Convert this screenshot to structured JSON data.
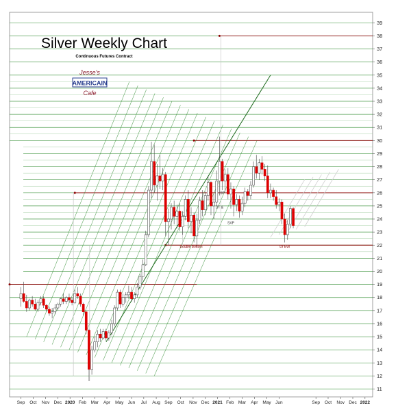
{
  "chart_data": {
    "type": "candlestick",
    "title": "Silver Weekly Chart",
    "subtitle": "Continuous Futures Contract",
    "logo_text": [
      "Jesse's",
      "AMERICAIN",
      "Cafe"
    ],
    "ylim": [
      10.4,
      39.8
    ],
    "y_ticks": [
      11,
      12,
      13,
      14,
      15,
      16,
      17,
      18,
      19,
      20,
      21,
      22,
      23,
      24,
      25,
      26,
      27,
      28,
      29,
      30,
      31,
      32,
      33,
      34,
      35,
      36,
      37,
      38,
      39
    ],
    "x_ticks": [
      {
        "label": "Sep",
        "w": 0
      },
      {
        "label": "Oct",
        "w": 4.3
      },
      {
        "label": "Nov",
        "w": 8.7
      },
      {
        "label": "Dec",
        "w": 13
      },
      {
        "label": "2020",
        "w": 17.3,
        "bold": true
      },
      {
        "label": "Feb",
        "w": 21.7
      },
      {
        "label": "Mar",
        "w": 26
      },
      {
        "label": "Apr",
        "w": 30.3
      },
      {
        "label": "May",
        "w": 34.7
      },
      {
        "label": "Jun",
        "w": 39
      },
      {
        "label": "Jul",
        "w": 43.3
      },
      {
        "label": "Aug",
        "w": 47.7
      },
      {
        "label": "Sep",
        "w": 52
      },
      {
        "label": "Oct",
        "w": 56.3
      },
      {
        "label": "Nov",
        "w": 60.7
      },
      {
        "label": "Dec",
        "w": 65
      },
      {
        "label": "2021",
        "w": 69.3,
        "bold": true
      },
      {
        "label": "Feb",
        "w": 73.7
      },
      {
        "label": "Mar",
        "w": 78
      },
      {
        "label": "Apr",
        "w": 82.3
      },
      {
        "label": "May",
        "w": 86.7
      },
      {
        "label": "Jun",
        "w": 91
      },
      {
        "label": "Sep",
        "w": 104
      },
      {
        "label": "Oct",
        "w": 108.3
      },
      {
        "label": "Nov",
        "w": 112.7
      },
      {
        "label": "Dec",
        "w": 117
      },
      {
        "label": "2022",
        "w": 121.3,
        "bold": true
      }
    ],
    "x_range": [
      -4,
      124
    ],
    "candles": [
      {
        "w": 0,
        "o": 17.9,
        "h": 18.8,
        "l": 17.3,
        "c": 18.3
      },
      {
        "w": 1,
        "o": 18.3,
        "h": 19.2,
        "l": 17.6,
        "c": 17.7
      },
      {
        "w": 2,
        "o": 17.7,
        "h": 18.2,
        "l": 16.9,
        "c": 17.2
      },
      {
        "w": 3,
        "o": 17.2,
        "h": 17.9,
        "l": 17.0,
        "c": 17.8
      },
      {
        "w": 4,
        "o": 17.8,
        "h": 18.1,
        "l": 17.3,
        "c": 17.5
      },
      {
        "w": 5,
        "o": 17.5,
        "h": 17.9,
        "l": 17.0,
        "c": 17.1
      },
      {
        "w": 6,
        "o": 17.1,
        "h": 17.8,
        "l": 16.9,
        "c": 17.6
      },
      {
        "w": 7,
        "o": 17.6,
        "h": 18.1,
        "l": 17.4,
        "c": 17.9
      },
      {
        "w": 8,
        "o": 17.9,
        "h": 18.1,
        "l": 17.2,
        "c": 17.4
      },
      {
        "w": 9,
        "o": 17.4,
        "h": 17.5,
        "l": 16.9,
        "c": 17.1
      },
      {
        "w": 10,
        "o": 17.1,
        "h": 17.3,
        "l": 16.6,
        "c": 16.8
      },
      {
        "w": 11,
        "o": 16.8,
        "h": 17.2,
        "l": 16.4,
        "c": 16.9
      },
      {
        "w": 12,
        "o": 16.9,
        "h": 17.5,
        "l": 16.7,
        "c": 17.2
      },
      {
        "w": 13,
        "o": 17.2,
        "h": 17.6,
        "l": 17.0,
        "c": 17.5
      },
      {
        "w": 14,
        "o": 17.5,
        "h": 18.0,
        "l": 17.3,
        "c": 17.9
      },
      {
        "w": 15,
        "o": 17.9,
        "h": 18.3,
        "l": 17.5,
        "c": 17.7
      },
      {
        "w": 16,
        "o": 17.7,
        "h": 18.1,
        "l": 17.5,
        "c": 18.0
      },
      {
        "w": 17,
        "o": 18.0,
        "h": 18.3,
        "l": 17.6,
        "c": 17.8
      },
      {
        "w": 18,
        "o": 17.8,
        "h": 18.0,
        "l": 17.4,
        "c": 17.6
      },
      {
        "w": 19,
        "o": 17.6,
        "h": 18.6,
        "l": 17.5,
        "c": 18.3
      },
      {
        "w": 20,
        "o": 18.3,
        "h": 18.8,
        "l": 17.9,
        "c": 18.1
      },
      {
        "w": 21,
        "o": 18.1,
        "h": 18.3,
        "l": 17.3,
        "c": 17.5
      },
      {
        "w": 22,
        "o": 17.5,
        "h": 17.6,
        "l": 16.6,
        "c": 16.9
      },
      {
        "w": 23,
        "o": 16.9,
        "h": 17.0,
        "l": 15.2,
        "c": 15.5
      },
      {
        "w": 24,
        "o": 15.5,
        "h": 15.6,
        "l": 11.6,
        "c": 12.5
      },
      {
        "w": 25,
        "o": 12.5,
        "h": 14.3,
        "l": 12.1,
        "c": 14.0
      },
      {
        "w": 26,
        "o": 14.0,
        "h": 15.0,
        "l": 13.8,
        "c": 14.6
      },
      {
        "w": 27,
        "o": 14.6,
        "h": 15.5,
        "l": 14.2,
        "c": 15.2
      },
      {
        "w": 28,
        "o": 15.2,
        "h": 15.6,
        "l": 14.6,
        "c": 14.9
      },
      {
        "w": 29,
        "o": 14.9,
        "h": 15.6,
        "l": 14.8,
        "c": 15.4
      },
      {
        "w": 30,
        "o": 15.4,
        "h": 15.6,
        "l": 14.7,
        "c": 14.9
      },
      {
        "w": 31,
        "o": 14.9,
        "h": 15.5,
        "l": 14.7,
        "c": 15.3
      },
      {
        "w": 32,
        "o": 15.3,
        "h": 16.3,
        "l": 15.1,
        "c": 16.0
      },
      {
        "w": 33,
        "o": 16.0,
        "h": 17.4,
        "l": 15.8,
        "c": 17.2
      },
      {
        "w": 34,
        "o": 17.2,
        "h": 18.6,
        "l": 17.0,
        "c": 18.4
      },
      {
        "w": 35,
        "o": 18.4,
        "h": 18.6,
        "l": 17.2,
        "c": 17.5
      },
      {
        "w": 36,
        "o": 17.5,
        "h": 18.3,
        "l": 17.3,
        "c": 18.0
      },
      {
        "w": 37,
        "o": 18.0,
        "h": 18.4,
        "l": 17.6,
        "c": 18.2
      },
      {
        "w": 38,
        "o": 18.2,
        "h": 18.9,
        "l": 17.9,
        "c": 18.4
      },
      {
        "w": 39,
        "o": 18.4,
        "h": 18.8,
        "l": 17.7,
        "c": 17.9
      },
      {
        "w": 40,
        "o": 17.9,
        "h": 18.4,
        "l": 17.6,
        "c": 18.2
      },
      {
        "w": 41,
        "o": 18.2,
        "h": 19.1,
        "l": 18.0,
        "c": 18.8
      },
      {
        "w": 42,
        "o": 18.8,
        "h": 19.8,
        "l": 18.6,
        "c": 19.6
      },
      {
        "w": 43,
        "o": 19.6,
        "h": 20.9,
        "l": 19.3,
        "c": 20.5
      },
      {
        "w": 44,
        "o": 20.5,
        "h": 23.1,
        "l": 20.4,
        "c": 22.8
      },
      {
        "w": 45,
        "o": 22.8,
        "h": 26.5,
        "l": 22.6,
        "c": 26.2
      },
      {
        "w": 46,
        "o": 26.2,
        "h": 29.9,
        "l": 25.6,
        "c": 28.4
      },
      {
        "w": 47,
        "o": 28.4,
        "h": 29.7,
        "l": 26.0,
        "c": 26.6
      },
      {
        "w": 48,
        "o": 26.6,
        "h": 28.2,
        "l": 25.4,
        "c": 27.3
      },
      {
        "w": 49,
        "o": 27.3,
        "h": 28.9,
        "l": 26.3,
        "c": 26.9
      },
      {
        "w": 50,
        "o": 26.9,
        "h": 27.9,
        "l": 26.2,
        "c": 27.4
      },
      {
        "w": 51,
        "o": 27.4,
        "h": 27.6,
        "l": 22.7,
        "c": 23.8
      },
      {
        "w": 52,
        "o": 23.8,
        "h": 24.8,
        "l": 22.0,
        "c": 24.0
      },
      {
        "w": 53,
        "o": 24.0,
        "h": 25.2,
        "l": 23.2,
        "c": 24.9
      },
      {
        "w": 54,
        "o": 24.9,
        "h": 25.4,
        "l": 23.6,
        "c": 24.2
      },
      {
        "w": 55,
        "o": 24.2,
        "h": 25.1,
        "l": 23.3,
        "c": 24.6
      },
      {
        "w": 56,
        "o": 24.6,
        "h": 25.2,
        "l": 23.1,
        "c": 23.4
      },
      {
        "w": 57,
        "o": 23.4,
        "h": 24.6,
        "l": 22.8,
        "c": 24.2
      },
      {
        "w": 58,
        "o": 24.2,
        "h": 25.8,
        "l": 23.9,
        "c": 25.5
      },
      {
        "w": 59,
        "o": 25.5,
        "h": 26.2,
        "l": 23.3,
        "c": 23.8
      },
      {
        "w": 60,
        "o": 23.8,
        "h": 24.9,
        "l": 22.9,
        "c": 24.3
      },
      {
        "w": 61,
        "o": 24.3,
        "h": 24.5,
        "l": 22.2,
        "c": 22.7
      },
      {
        "w": 62,
        "o": 22.7,
        "h": 24.4,
        "l": 21.9,
        "c": 23.9
      },
      {
        "w": 63,
        "o": 23.9,
        "h": 25.7,
        "l": 23.6,
        "c": 25.4
      },
      {
        "w": 64,
        "o": 25.4,
        "h": 26.2,
        "l": 24.2,
        "c": 24.7
      },
      {
        "w": 65,
        "o": 24.7,
        "h": 26.1,
        "l": 24.3,
        "c": 25.8
      },
      {
        "w": 66,
        "o": 25.8,
        "h": 27.3,
        "l": 25.4,
        "c": 26.8
      },
      {
        "w": 67,
        "o": 26.8,
        "h": 26.9,
        "l": 24.3,
        "c": 25.0
      },
      {
        "w": 68,
        "o": 25.0,
        "h": 25.9,
        "l": 24.0,
        "c": 25.3
      },
      {
        "w": 69,
        "o": 25.3,
        "h": 27.7,
        "l": 25.0,
        "c": 26.9
      },
      {
        "w": 70,
        "o": 26.9,
        "h": 30.3,
        "l": 25.8,
        "c": 28.4
      },
      {
        "w": 71,
        "o": 28.4,
        "h": 28.6,
        "l": 26.2,
        "c": 26.9
      },
      {
        "w": 72,
        "o": 26.9,
        "h": 27.8,
        "l": 26.1,
        "c": 27.4
      },
      {
        "w": 73,
        "o": 27.4,
        "h": 27.9,
        "l": 25.5,
        "c": 25.9
      },
      {
        "w": 74,
        "o": 25.9,
        "h": 26.8,
        "l": 24.8,
        "c": 26.3
      },
      {
        "w": 75,
        "o": 26.3,
        "h": 26.5,
        "l": 24.2,
        "c": 25.1
      },
      {
        "w": 76,
        "o": 25.1,
        "h": 25.9,
        "l": 24.6,
        "c": 25.5
      },
      {
        "w": 77,
        "o": 25.5,
        "h": 25.8,
        "l": 24.1,
        "c": 24.6
      },
      {
        "w": 78,
        "o": 24.6,
        "h": 25.7,
        "l": 24.3,
        "c": 25.2
      },
      {
        "w": 79,
        "o": 25.2,
        "h": 26.4,
        "l": 24.9,
        "c": 26.1
      },
      {
        "w": 80,
        "o": 26.1,
        "h": 26.3,
        "l": 25.4,
        "c": 25.8
      },
      {
        "w": 81,
        "o": 25.8,
        "h": 26.9,
        "l": 25.5,
        "c": 26.6
      },
      {
        "w": 82,
        "o": 26.6,
        "h": 28.4,
        "l": 26.4,
        "c": 28.0
      },
      {
        "w": 83,
        "o": 28.0,
        "h": 28.9,
        "l": 27.1,
        "c": 27.5
      },
      {
        "w": 84,
        "o": 27.5,
        "h": 28.6,
        "l": 27.0,
        "c": 28.3
      },
      {
        "w": 85,
        "o": 28.3,
        "h": 28.8,
        "l": 27.4,
        "c": 27.8
      },
      {
        "w": 86,
        "o": 27.8,
        "h": 28.2,
        "l": 26.9,
        "c": 27.3
      },
      {
        "w": 87,
        "o": 27.3,
        "h": 28.1,
        "l": 25.6,
        "c": 26.0
      },
      {
        "w": 88,
        "o": 26.0,
        "h": 26.7,
        "l": 25.6,
        "c": 26.2
      },
      {
        "w": 89,
        "o": 26.2,
        "h": 26.4,
        "l": 25.4,
        "c": 25.7
      },
      {
        "w": 90,
        "o": 25.7,
        "h": 26.2,
        "l": 24.8,
        "c": 25.1
      },
      {
        "w": 91,
        "o": 25.1,
        "h": 25.6,
        "l": 24.6,
        "c": 25.3
      },
      {
        "w": 92,
        "o": 25.3,
        "h": 25.5,
        "l": 23.6,
        "c": 24.0
      },
      {
        "w": 93,
        "o": 24.0,
        "h": 24.4,
        "l": 22.2,
        "c": 22.8
      },
      {
        "w": 94,
        "o": 22.8,
        "h": 23.9,
        "l": 22.4,
        "c": 23.6
      },
      {
        "w": 95,
        "o": 23.6,
        "h": 25.0,
        "l": 23.3,
        "c": 24.8
      },
      {
        "w": 96,
        "o": 24.8,
        "h": 24.9,
        "l": 23.3,
        "c": 23.5
      }
    ],
    "annotations": [
      {
        "text": "Double Bottom",
        "w": 60,
        "y": 21.8,
        "color": "#8b0000"
      },
      {
        "text": "Dr Evil",
        "w": 93,
        "y": 21.8,
        "color": "#8b0000"
      },
      {
        "text": "SP",
        "w": 71,
        "y": 25.9,
        "color": "#333333"
      },
      {
        "text": "DT &",
        "w": 70,
        "y": 24.8,
        "color": "#333333"
      },
      {
        "text": "SXP",
        "w": 74,
        "y": 23.6,
        "color": "#333333"
      }
    ],
    "colors": {
      "up": "#ffffff",
      "down": "#dd0000",
      "wick": "#444444",
      "green": "#2e8b2e",
      "red_level": "#8b0000",
      "grey": "#cfcfcf"
    }
  }
}
